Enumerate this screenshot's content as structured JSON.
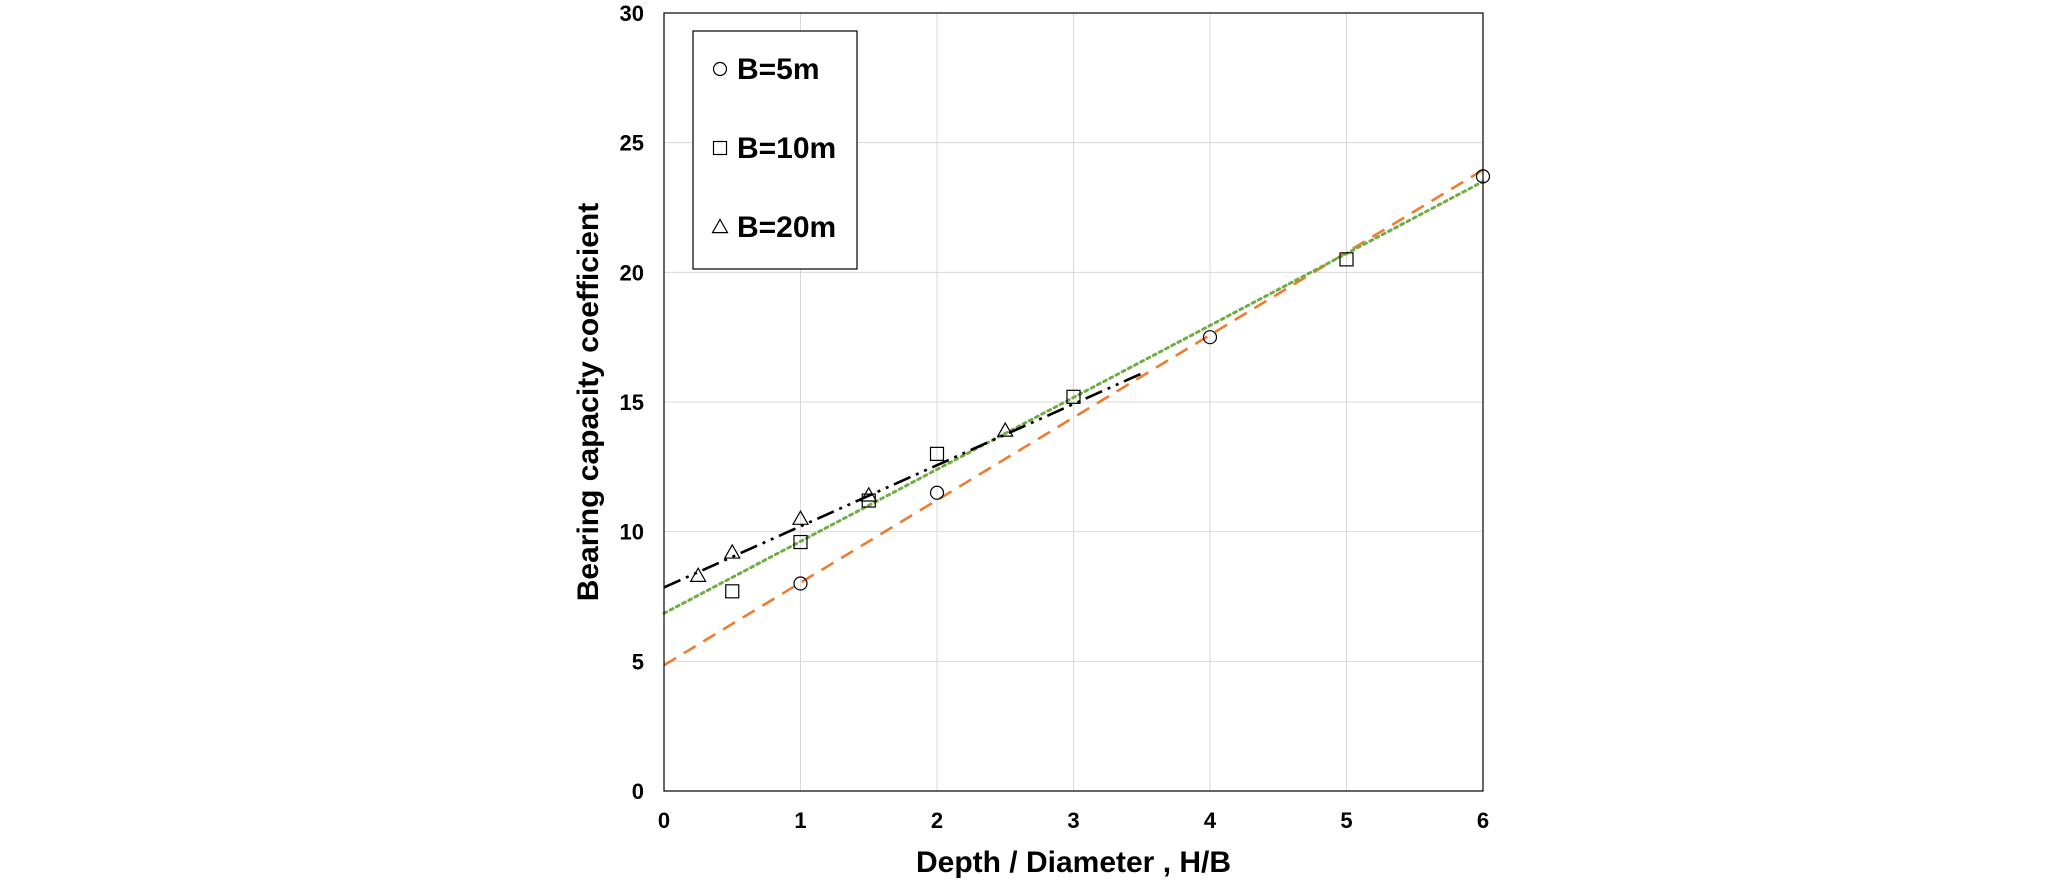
{
  "chart_data": {
    "type": "scatter",
    "title": "",
    "xlabel": "Depth / Diameter , H/B",
    "ylabel": "Bearing capacity coefficient",
    "xlim": [
      0,
      6
    ],
    "ylim": [
      0,
      30
    ],
    "x_ticks": [
      "0",
      "1",
      "2",
      "3",
      "4",
      "5",
      "6"
    ],
    "y_ticks": [
      "0",
      "5",
      "10",
      "15",
      "20",
      "25",
      "30"
    ],
    "grid": true,
    "legend_position": "top-left",
    "series": [
      {
        "name": "B=5m",
        "marker": "circle",
        "x": [
          1,
          2,
          4,
          6
        ],
        "y": [
          8.0,
          11.5,
          17.5,
          23.7
        ]
      },
      {
        "name": "B=10m",
        "marker": "square",
        "x": [
          0.5,
          1,
          1.5,
          2,
          3,
          5
        ],
        "y": [
          7.7,
          9.6,
          11.2,
          13.0,
          15.2,
          20.5
        ]
      },
      {
        "name": "B=20m",
        "marker": "triangle",
        "x": [
          0.25,
          0.5,
          1,
          1.5,
          2.5
        ],
        "y": [
          8.3,
          9.2,
          10.5,
          11.4,
          13.9
        ]
      }
    ],
    "trendlines": [
      {
        "series": "B=5m",
        "style": "dashed",
        "color": "#ed7d31",
        "x": [
          0,
          6
        ],
        "y": [
          4.85,
          23.95
        ]
      },
      {
        "series": "B=10m",
        "style": "dotted",
        "color": "#70ad47",
        "x": [
          0,
          6
        ],
        "y": [
          6.85,
          23.5
        ]
      },
      {
        "series": "B=20m",
        "style": "dash-dot-dot",
        "color": "#000000",
        "x": [
          0,
          3.5
        ],
        "y": [
          7.85,
          16.1
        ]
      }
    ]
  }
}
